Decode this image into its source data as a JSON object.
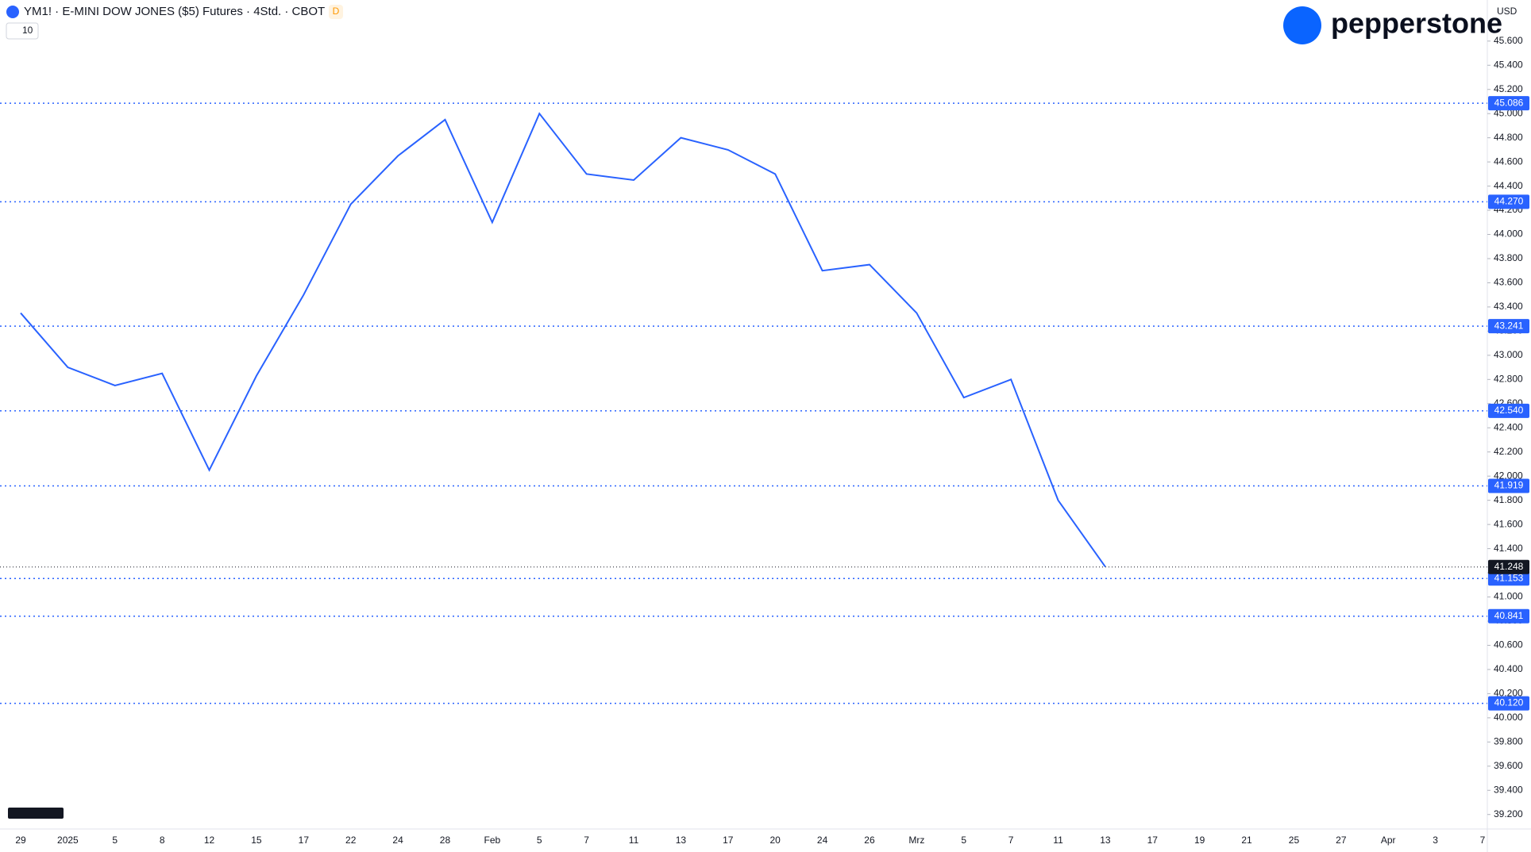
{
  "chart_data": {
    "type": "line",
    "title": "YM1! · E-MINI DOW JONES ($5) Futures · 4Std. · CBOT",
    "badge": "D",
    "indicator_value": "10",
    "currency": "USD",
    "brand": "pepperstone",
    "categories": [
      "29",
      "2025",
      "5",
      "8",
      "12",
      "15",
      "17",
      "22",
      "24",
      "28",
      "Feb",
      "5",
      "7",
      "11",
      "13",
      "17",
      "20",
      "24",
      "26",
      "Mrz",
      "5",
      "7",
      "11",
      "13",
      "17",
      "19",
      "21",
      "25",
      "27",
      "Apr",
      "3",
      "7"
    ],
    "series": [
      {
        "name": "YM1!",
        "color": "#2962ff",
        "values": [
          43350,
          42900,
          42750,
          42850,
          42050,
          42830,
          43500,
          44250,
          44650,
          44950,
          44100,
          45000,
          44500,
          44450,
          44800,
          44700,
          44500,
          43700,
          43750,
          43350,
          42650,
          42800,
          41800,
          41250,
          null,
          null,
          null,
          null,
          null,
          null,
          null,
          null
        ]
      }
    ],
    "ylim": [
      39080,
      45940
    ],
    "yticks": [
      {
        "value": 39200,
        "label": "39.200"
      },
      {
        "value": 39400,
        "label": "39.400"
      },
      {
        "value": 39600,
        "label": "39.600"
      },
      {
        "value": 39800,
        "label": "39.800"
      },
      {
        "value": 40000,
        "label": "40.000"
      },
      {
        "value": 40200,
        "label": "40.200"
      },
      {
        "value": 40400,
        "label": "40.400"
      },
      {
        "value": 40600,
        "label": "40.600"
      },
      {
        "value": 40800,
        "label": "40.800"
      },
      {
        "value": 41000,
        "label": "41.000"
      },
      {
        "value": 41200,
        "label": "41.200"
      },
      {
        "value": 41400,
        "label": "41.400"
      },
      {
        "value": 41600,
        "label": "41.600"
      },
      {
        "value": 41800,
        "label": "41.800"
      },
      {
        "value": 42000,
        "label": "42.000"
      },
      {
        "value": 42200,
        "label": "42.200"
      },
      {
        "value": 42400,
        "label": "42.400"
      },
      {
        "value": 42600,
        "label": "42.600"
      },
      {
        "value": 42800,
        "label": "42.800"
      },
      {
        "value": 43000,
        "label": "43.000"
      },
      {
        "value": 43200,
        "label": "43.200"
      },
      {
        "value": 43400,
        "label": "43.400"
      },
      {
        "value": 43600,
        "label": "43.600"
      },
      {
        "value": 43800,
        "label": "43.800"
      },
      {
        "value": 44000,
        "label": "44.000"
      },
      {
        "value": 44200,
        "label": "44.200"
      },
      {
        "value": 44400,
        "label": "44.400"
      },
      {
        "value": 44600,
        "label": "44.600"
      },
      {
        "value": 44800,
        "label": "44.800"
      },
      {
        "value": 45000,
        "label": "45.000"
      },
      {
        "value": 45200,
        "label": "45.200"
      },
      {
        "value": 45400,
        "label": "45.400"
      },
      {
        "value": 45600,
        "label": "45.600"
      }
    ],
    "levels": [
      {
        "value": 45086,
        "label": "45.086"
      },
      {
        "value": 44270,
        "label": "44.270"
      },
      {
        "value": 43241,
        "label": "43.241"
      },
      {
        "value": 42540,
        "label": "42.540"
      },
      {
        "value": 41919,
        "label": "41.919"
      },
      {
        "value": 41153,
        "label": "41.153"
      },
      {
        "value": 40841,
        "label": "40.841"
      },
      {
        "value": 40120,
        "label": "40.120"
      }
    ],
    "level_color": "#2962ff",
    "last_price": {
      "value": 41248,
      "label": "41.248"
    }
  }
}
